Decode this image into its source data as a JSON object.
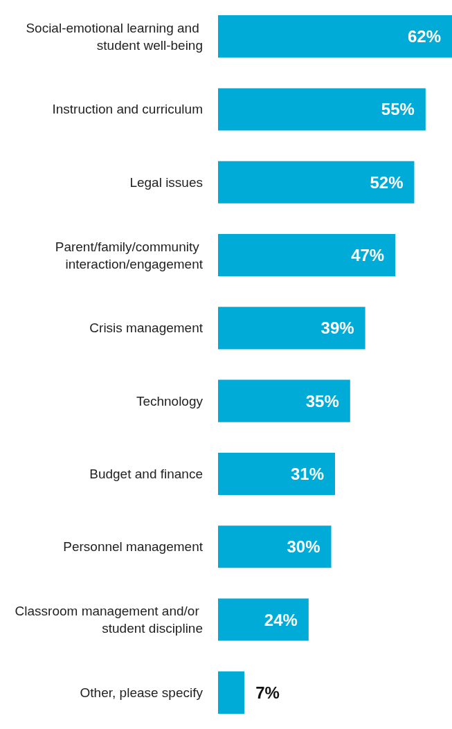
{
  "chart_data": {
    "type": "bar",
    "orientation": "horizontal",
    "categories": [
      "Social-emotional learning and student well-being",
      "Instruction and curriculum",
      "Legal issues",
      "Parent/family/community interaction/engagement",
      "Crisis management",
      "Technology",
      "Budget and finance",
      "Personnel management",
      "Classroom management and/or student discipline",
      "Other, please specify"
    ],
    "values": [
      62,
      55,
      52,
      47,
      39,
      35,
      31,
      30,
      24,
      7
    ],
    "value_labels": [
      "62%",
      "55%",
      "52%",
      "47%",
      "39%",
      "35%",
      "31%",
      "30%",
      "24%",
      "7%"
    ],
    "color": "#00acd7",
    "xlim": [
      0,
      62
    ],
    "tick_labels": "y"
  }
}
